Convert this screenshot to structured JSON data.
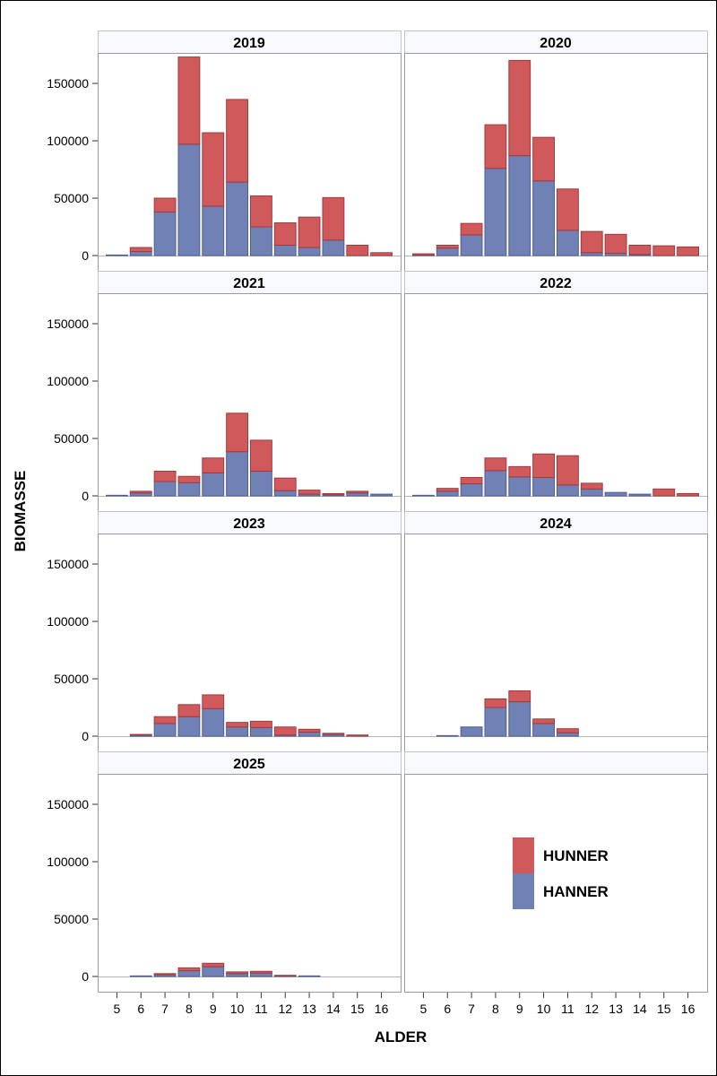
{
  "chart_data": {
    "type": "bar",
    "stacked": true,
    "layout": "panel grid, 2 columns x 4 rows",
    "xlabel": "ALDER",
    "ylabel": "BIOMASSE",
    "categories": [
      5,
      6,
      7,
      8,
      9,
      10,
      11,
      12,
      13,
      14,
      15,
      16
    ],
    "ylim": [
      0,
      175000
    ],
    "yticks": [
      0,
      50000,
      100000,
      150000
    ],
    "grid": false,
    "legend": {
      "position": "bottom-right empty panel",
      "entries": [
        {
          "name": "HUNNER",
          "color": "#d05a5b"
        },
        {
          "name": "HANNER",
          "color": "#7081b6"
        }
      ]
    },
    "panels": [
      {
        "title": "2019",
        "series": [
          {
            "name": "HANNER",
            "values": [
              500,
              3500,
              38000,
              97000,
              43000,
              64000,
              25000,
              9000,
              7000,
              13500,
              0,
              0
            ]
          },
          {
            "name": "HUNNER",
            "values": [
              0,
              3500,
              12000,
              76000,
              64000,
              72000,
              27000,
              19500,
              26500,
              37000,
              9000,
              2500
            ]
          }
        ]
      },
      {
        "title": "2020",
        "series": [
          {
            "name": "HANNER",
            "values": [
              500,
              6500,
              18000,
              76000,
              87000,
              65000,
              22000,
              2500,
              2000,
              1000,
              0,
              0
            ]
          },
          {
            "name": "HUNNER",
            "values": [
              1000,
              2500,
              10000,
              38000,
              83000,
              38000,
              36000,
              18500,
              16500,
              8000,
              8500,
              7500
            ]
          }
        ]
      },
      {
        "title": "2021",
        "series": [
          {
            "name": "HANNER",
            "values": [
              500,
              2500,
              12500,
              11500,
              20000,
              38500,
              21500,
              4500,
              1500,
              1000,
              2500,
              1500
            ]
          },
          {
            "name": "HUNNER",
            "values": [
              0,
              1500,
              9000,
              5500,
              13000,
              33500,
              27000,
              11000,
              3500,
              1000,
              1500,
              0
            ]
          }
        ]
      },
      {
        "title": "2022",
        "series": [
          {
            "name": "HANNER",
            "values": [
              500,
              4000,
              10500,
              22000,
              16500,
              16000,
              9500,
              6000,
              3000,
              1500,
              0,
              0
            ]
          },
          {
            "name": "HUNNER",
            "values": [
              0,
              2500,
              5500,
              11000,
              9000,
              20500,
              25500,
              5000,
              0,
              0,
              6000,
              2000
            ]
          }
        ]
      },
      {
        "title": "2023",
        "series": [
          {
            "name": "HANNER",
            "values": [
              0,
              1000,
              11000,
              17000,
              24000,
              8000,
              7500,
              1000,
              3500,
              1500,
              0,
              0
            ]
          },
          {
            "name": "HUNNER",
            "values": [
              0,
              500,
              6000,
              10500,
              12000,
              4000,
              5500,
              7000,
              2500,
              1000,
              1000,
              0
            ]
          }
        ]
      },
      {
        "title": "2024",
        "series": [
          {
            "name": "HANNER",
            "values": [
              0,
              500,
              8000,
              25000,
              30000,
              11000,
              3000,
              0,
              0,
              0,
              0,
              0
            ]
          },
          {
            "name": "HUNNER",
            "values": [
              0,
              0,
              0,
              7500,
              9500,
              4000,
              3500,
              0,
              0,
              0,
              0,
              0
            ]
          }
        ]
      },
      {
        "title": "2025",
        "series": [
          {
            "name": "HANNER",
            "values": [
              0,
              500,
              1500,
              5000,
              8500,
              2500,
              3000,
              500,
              500,
              0,
              0,
              0
            ]
          },
          {
            "name": "HUNNER",
            "values": [
              0,
              0,
              1000,
              2500,
              3000,
              1500,
              1500,
              500,
              0,
              0,
              0,
              0
            ]
          }
        ]
      }
    ]
  }
}
